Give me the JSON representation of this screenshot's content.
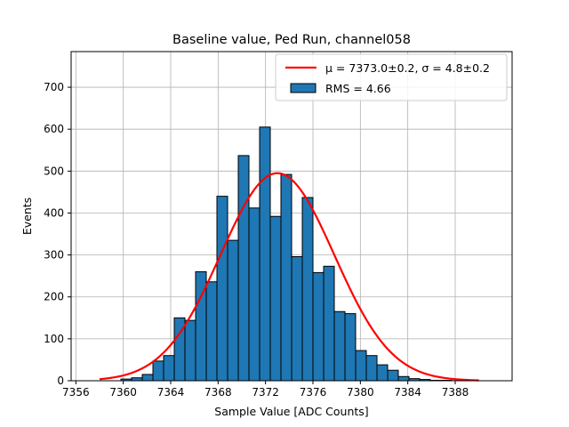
{
  "chart_data": {
    "type": "bar",
    "title": "Baseline value, Ped Run, channel058",
    "xlabel": "Sample Value [ADC Counts]",
    "ylabel": "Events",
    "xlim": [
      7355.6,
      7392.8
    ],
    "ylim": [
      0,
      785
    ],
    "xticks": [
      7356,
      7360,
      7364,
      7368,
      7372,
      7376,
      7380,
      7384,
      7388
    ],
    "yticks": [
      0,
      100,
      200,
      300,
      400,
      500,
      600,
      700
    ],
    "grid": true,
    "legend_position": "top-right",
    "histogram": {
      "name": "RMS = 4.66",
      "color": "#1f77b4",
      "edgecolor": "#000000",
      "bin_edges": [
        7359.8,
        7360.7,
        7361.6,
        7362.5,
        7363.4,
        7364.3,
        7365.2,
        7366.1,
        7367.0,
        7367.9,
        7368.8,
        7369.7,
        7370.6,
        7371.5,
        7372.4,
        7373.3,
        7374.2,
        7375.1,
        7376.0,
        7376.9,
        7377.8,
        7378.7,
        7379.6,
        7380.5,
        7381.4,
        7382.3,
        7383.2,
        7384.1,
        7385.0,
        7385.9,
        7386.8,
        7387.7
      ],
      "counts": [
        4,
        7,
        15,
        47,
        60,
        150,
        144,
        260,
        236,
        440,
        335,
        537,
        412,
        605,
        392,
        492,
        296,
        437,
        258,
        273,
        165,
        160,
        72,
        60,
        38,
        25,
        10,
        5,
        3,
        1,
        1
      ]
    },
    "fit": {
      "name": "$\\mu = 7373.0\\pm0.2$, $\\sigma = 4.8\\pm0.2$",
      "label_plain": "μ = 7373.0±0.2, σ = 4.8±0.2",
      "color": "#ff0000",
      "mu": 7373.0,
      "sigma": 4.8,
      "amplitude": 495,
      "x_range": [
        7358,
        7390
      ]
    }
  }
}
